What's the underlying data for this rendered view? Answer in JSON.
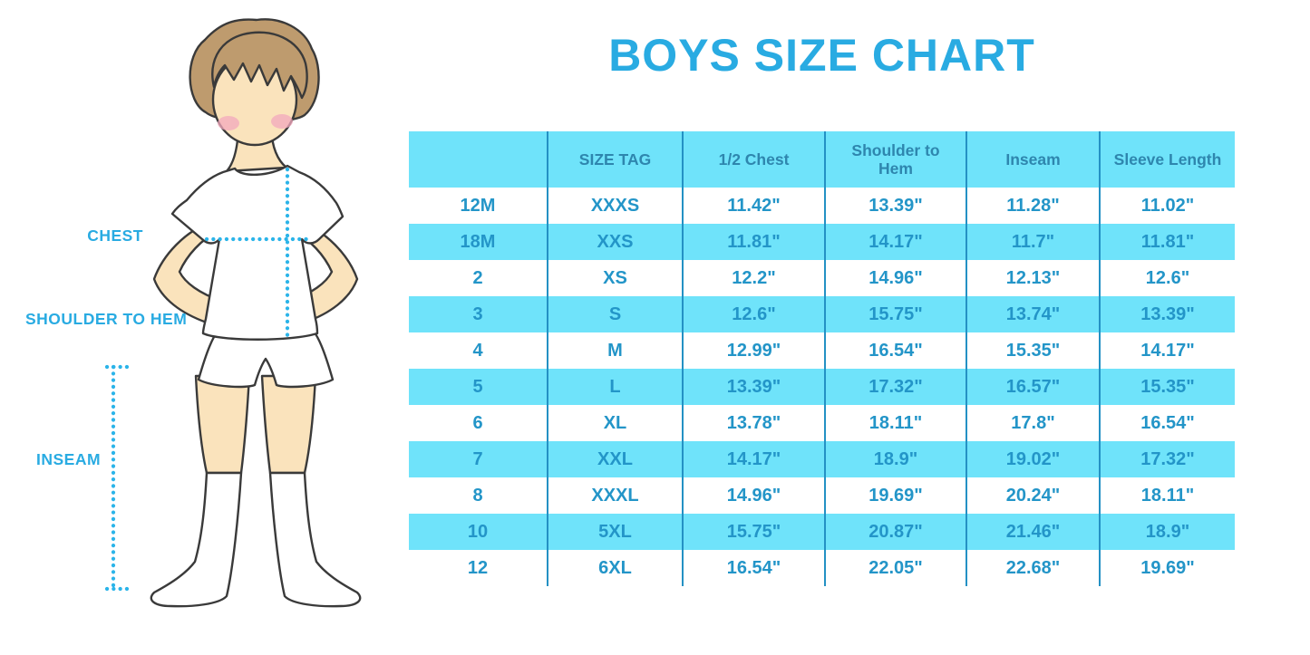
{
  "page": {
    "title": "BOYS SIZE CHART"
  },
  "figure": {
    "labels": {
      "chest": "CHEST",
      "shoulder_to_hem": "SHOULDER TO HEM",
      "inseam": "INSEAM"
    },
    "illustration": "faceless boy with brown hair, white t-shirt, white shorts and white knee socks, hands on hips, with dotted measurement guide lines"
  },
  "colors": {
    "title_blue": "#29ABE2",
    "label_blue": "#29ABE2",
    "stripe_cyan": "#6FE3FA",
    "divider_blue": "#2491C4",
    "header_text": "#2E86AE",
    "body_text": "#2395C8",
    "dotted_line": "#2BB4E9",
    "skin": "#FAE3BC",
    "hair": "#BE9B6E",
    "cheek": "#F3A9BE",
    "outline": "#3A3A3A"
  },
  "chart_data": {
    "type": "table",
    "title": "BOYS SIZE CHART",
    "columns": [
      "",
      "SIZE TAG",
      "1/2 Chest",
      "Shoulder to Hem",
      "Inseam",
      "Sleeve Length"
    ],
    "rows": [
      [
        "12M",
        "XXXS",
        "11.42\"",
        "13.39\"",
        "11.28\"",
        "11.02\""
      ],
      [
        "18M",
        "XXS",
        "11.81\"",
        "14.17\"",
        "11.7\"",
        "11.81\""
      ],
      [
        "2",
        "XS",
        "12.2\"",
        "14.96\"",
        "12.13\"",
        "12.6\""
      ],
      [
        "3",
        "S",
        "12.6\"",
        "15.75\"",
        "13.74\"",
        "13.39\""
      ],
      [
        "4",
        "M",
        "12.99\"",
        "16.54\"",
        "15.35\"",
        "14.17\""
      ],
      [
        "5",
        "L",
        "13.39\"",
        "17.32\"",
        "16.57\"",
        "15.35\""
      ],
      [
        "6",
        "XL",
        "13.78\"",
        "18.11\"",
        "17.8\"",
        "16.54\""
      ],
      [
        "7",
        "XXL",
        "14.17\"",
        "18.9\"",
        "19.02\"",
        "17.32\""
      ],
      [
        "8",
        "XXXL",
        "14.96\"",
        "19.69\"",
        "20.24\"",
        "18.11\""
      ],
      [
        "10",
        "5XL",
        "15.75\"",
        "20.87\"",
        "21.46\"",
        "18.9\""
      ],
      [
        "12",
        "6XL",
        "16.54\"",
        "22.05\"",
        "22.68\"",
        "19.69\""
      ]
    ]
  }
}
